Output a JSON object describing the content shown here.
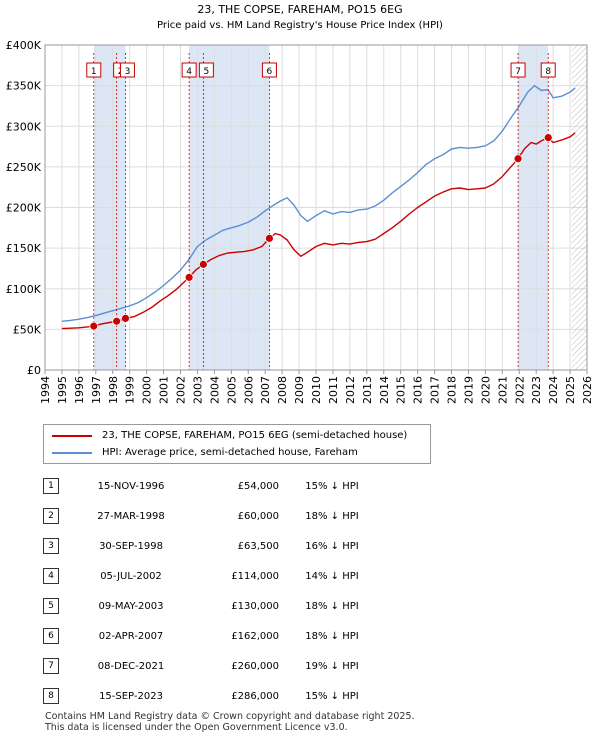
{
  "title": "23, THE COPSE, FAREHAM, PO15 6EG",
  "subtitle": "Price paid vs. HM Land Registry's House Price Index (HPI)",
  "legend": {
    "property_label": "23, THE COPSE, FAREHAM, PO15 6EG (semi-detached house)",
    "hpi_label": "HPI: Average price, semi-detached house, Fareham"
  },
  "colors": {
    "property": "#cc0000",
    "hpi": "#5b8fd1",
    "sale_band": "#dce6f5",
    "future_hatch": "#bbbbbb"
  },
  "sales": [
    {
      "num": "1",
      "date": "15-NOV-1996",
      "price": "£54,000",
      "hpi": "15% ↓ HPI"
    },
    {
      "num": "2",
      "date": "27-MAR-1998",
      "price": "£60,000",
      "hpi": "18% ↓ HPI"
    },
    {
      "num": "3",
      "date": "30-SEP-1998",
      "price": "£63,500",
      "hpi": "16% ↓ HPI"
    },
    {
      "num": "4",
      "date": "05-JUL-2002",
      "price": "£114,000",
      "hpi": "14% ↓ HPI"
    },
    {
      "num": "5",
      "date": "09-MAY-2003",
      "price": "£130,000",
      "hpi": "18% ↓ HPI"
    },
    {
      "num": "6",
      "date": "02-APR-2007",
      "price": "£162,000",
      "hpi": "18% ↓ HPI"
    },
    {
      "num": "7",
      "date": "08-DEC-2021",
      "price": "£260,000",
      "hpi": "19% ↓ HPI"
    },
    {
      "num": "8",
      "date": "15-SEP-2023",
      "price": "£286,000",
      "hpi": "15% ↓ HPI"
    }
  ],
  "footer": {
    "line1": "Contains HM Land Registry data © Crown copyright and database right 2025.",
    "line2": "This data is licensed under the Open Government Licence v3.0."
  },
  "chart_data": {
    "type": "line",
    "xlim": [
      1994,
      2026
    ],
    "ylim": [
      0,
      400000
    ],
    "x_ticks": [
      "1994",
      "1995",
      "1996",
      "1997",
      "1998",
      "1999",
      "2000",
      "2001",
      "2002",
      "2003",
      "2004",
      "2005",
      "2006",
      "2007",
      "2008",
      "2009",
      "2010",
      "2011",
      "2012",
      "2013",
      "2014",
      "2015",
      "2016",
      "2017",
      "2018",
      "2019",
      "2020",
      "2021",
      "2022",
      "2023",
      "2024",
      "2025",
      "2026"
    ],
    "y_ticks": [
      {
        "value": 0,
        "label": "£0"
      },
      {
        "value": 50000,
        "label": "£50K"
      },
      {
        "value": 100000,
        "label": "£100K"
      },
      {
        "value": 150000,
        "label": "£150K"
      },
      {
        "value": 200000,
        "label": "£200K"
      },
      {
        "value": 250000,
        "label": "£250K"
      },
      {
        "value": 300000,
        "label": "£300K"
      },
      {
        "value": 350000,
        "label": "£350K"
      },
      {
        "value": 400000,
        "label": "£400K"
      }
    ],
    "grid": true,
    "legend_position": "below",
    "shaded_ranges": [
      [
        1996.9,
        1998.75
      ],
      [
        2002.5,
        2007.25
      ],
      [
        2021.93,
        2023.7
      ]
    ],
    "future_hatch_from": 2025.1,
    "sale_points": [
      {
        "label": "1",
        "x": 1996.88,
        "y": 54000
      },
      {
        "label": "2",
        "x": 1998.23,
        "y": 60000
      },
      {
        "label": "3",
        "x": 1998.75,
        "y": 63500
      },
      {
        "label": "4",
        "x": 2002.51,
        "y": 114000
      },
      {
        "label": "5",
        "x": 2003.35,
        "y": 130000
      },
      {
        "label": "6",
        "x": 2007.25,
        "y": 162000
      },
      {
        "label": "7",
        "x": 2021.93,
        "y": 260000
      },
      {
        "label": "8",
        "x": 2023.71,
        "y": 286000
      }
    ],
    "series": [
      {
        "name": "23, THE COPSE, FAREHAM, PO15 6EG (semi-detached house)",
        "x": [
          1995.0,
          1995.5,
          1996.0,
          1996.5,
          1996.88,
          1997.3,
          1997.8,
          1998.23,
          1998.75,
          1999.3,
          1999.8,
          2000.3,
          2000.8,
          2001.3,
          2001.8,
          2002.2,
          2002.51,
          2002.9,
          2003.35,
          2003.8,
          2004.3,
          2004.8,
          2005.3,
          2005.8,
          2006.3,
          2006.8,
          2007.25,
          2007.6,
          2007.9,
          2008.3,
          2008.7,
          2009.1,
          2009.5,
          2010.0,
          2010.5,
          2011.0,
          2011.5,
          2012.0,
          2012.5,
          2013.0,
          2013.5,
          2014.0,
          2014.5,
          2015.0,
          2015.5,
          2016.0,
          2016.5,
          2017.0,
          2017.5,
          2018.0,
          2018.5,
          2019.0,
          2019.5,
          2020.0,
          2020.5,
          2021.0,
          2021.5,
          2021.93,
          2022.3,
          2022.7,
          2023.0,
          2023.3,
          2023.71,
          2024.0,
          2024.5,
          2025.0,
          2025.3
        ],
        "y": [
          51000,
          51500,
          52000,
          53000,
          54000,
          56500,
          58500,
          60000,
          63500,
          66000,
          71000,
          77000,
          85000,
          92000,
          100000,
          108000,
          114000,
          123000,
          130000,
          136000,
          141000,
          144000,
          145000,
          146000,
          148000,
          152000,
          162000,
          168000,
          166000,
          160000,
          148000,
          140000,
          145000,
          152000,
          156000,
          154000,
          156000,
          155000,
          157000,
          158000,
          161000,
          168000,
          175000,
          183000,
          192000,
          200000,
          207000,
          214000,
          219000,
          223000,
          224000,
          222000,
          223000,
          224000,
          229000,
          238000,
          250000,
          260000,
          272000,
          280000,
          278000,
          282000,
          286000,
          280000,
          283000,
          287000,
          292000
        ]
      },
      {
        "name": "HPI: Average price, semi-detached house, Fareham",
        "x": [
          1995.0,
          1995.5,
          1996.0,
          1996.5,
          1997.0,
          1997.5,
          1998.0,
          1998.5,
          1999.0,
          1999.5,
          2000.0,
          2000.5,
          2001.0,
          2001.5,
          2002.0,
          2002.5,
          2003.0,
          2003.5,
          2004.0,
          2004.5,
          2005.0,
          2005.5,
          2006.0,
          2006.5,
          2007.0,
          2007.5,
          2007.9,
          2008.3,
          2008.7,
          2009.1,
          2009.5,
          2010.0,
          2010.5,
          2011.0,
          2011.5,
          2012.0,
          2012.5,
          2013.0,
          2013.5,
          2014.0,
          2014.5,
          2015.0,
          2015.5,
          2016.0,
          2016.5,
          2017.0,
          2017.5,
          2018.0,
          2018.5,
          2019.0,
          2019.5,
          2020.0,
          2020.5,
          2021.0,
          2021.5,
          2022.0,
          2022.5,
          2022.9,
          2023.3,
          2023.7,
          2024.0,
          2024.5,
          2025.0,
          2025.3
        ],
        "y": [
          60000,
          61000,
          62500,
          64500,
          67000,
          70000,
          73000,
          76000,
          79000,
          83000,
          89000,
          96000,
          104000,
          113000,
          123000,
          136000,
          152000,
          160000,
          166000,
          172000,
          175000,
          178000,
          182000,
          188000,
          196000,
          203000,
          208000,
          212000,
          203000,
          190000,
          183000,
          190000,
          196000,
          192000,
          195000,
          194000,
          197000,
          198000,
          202000,
          209000,
          218000,
          226000,
          234000,
          243000,
          253000,
          260000,
          265000,
          272000,
          274000,
          273000,
          274000,
          276000,
          282000,
          294000,
          310000,
          325000,
          342000,
          350000,
          344000,
          345000,
          335000,
          337000,
          342000,
          347000
        ]
      }
    ]
  }
}
